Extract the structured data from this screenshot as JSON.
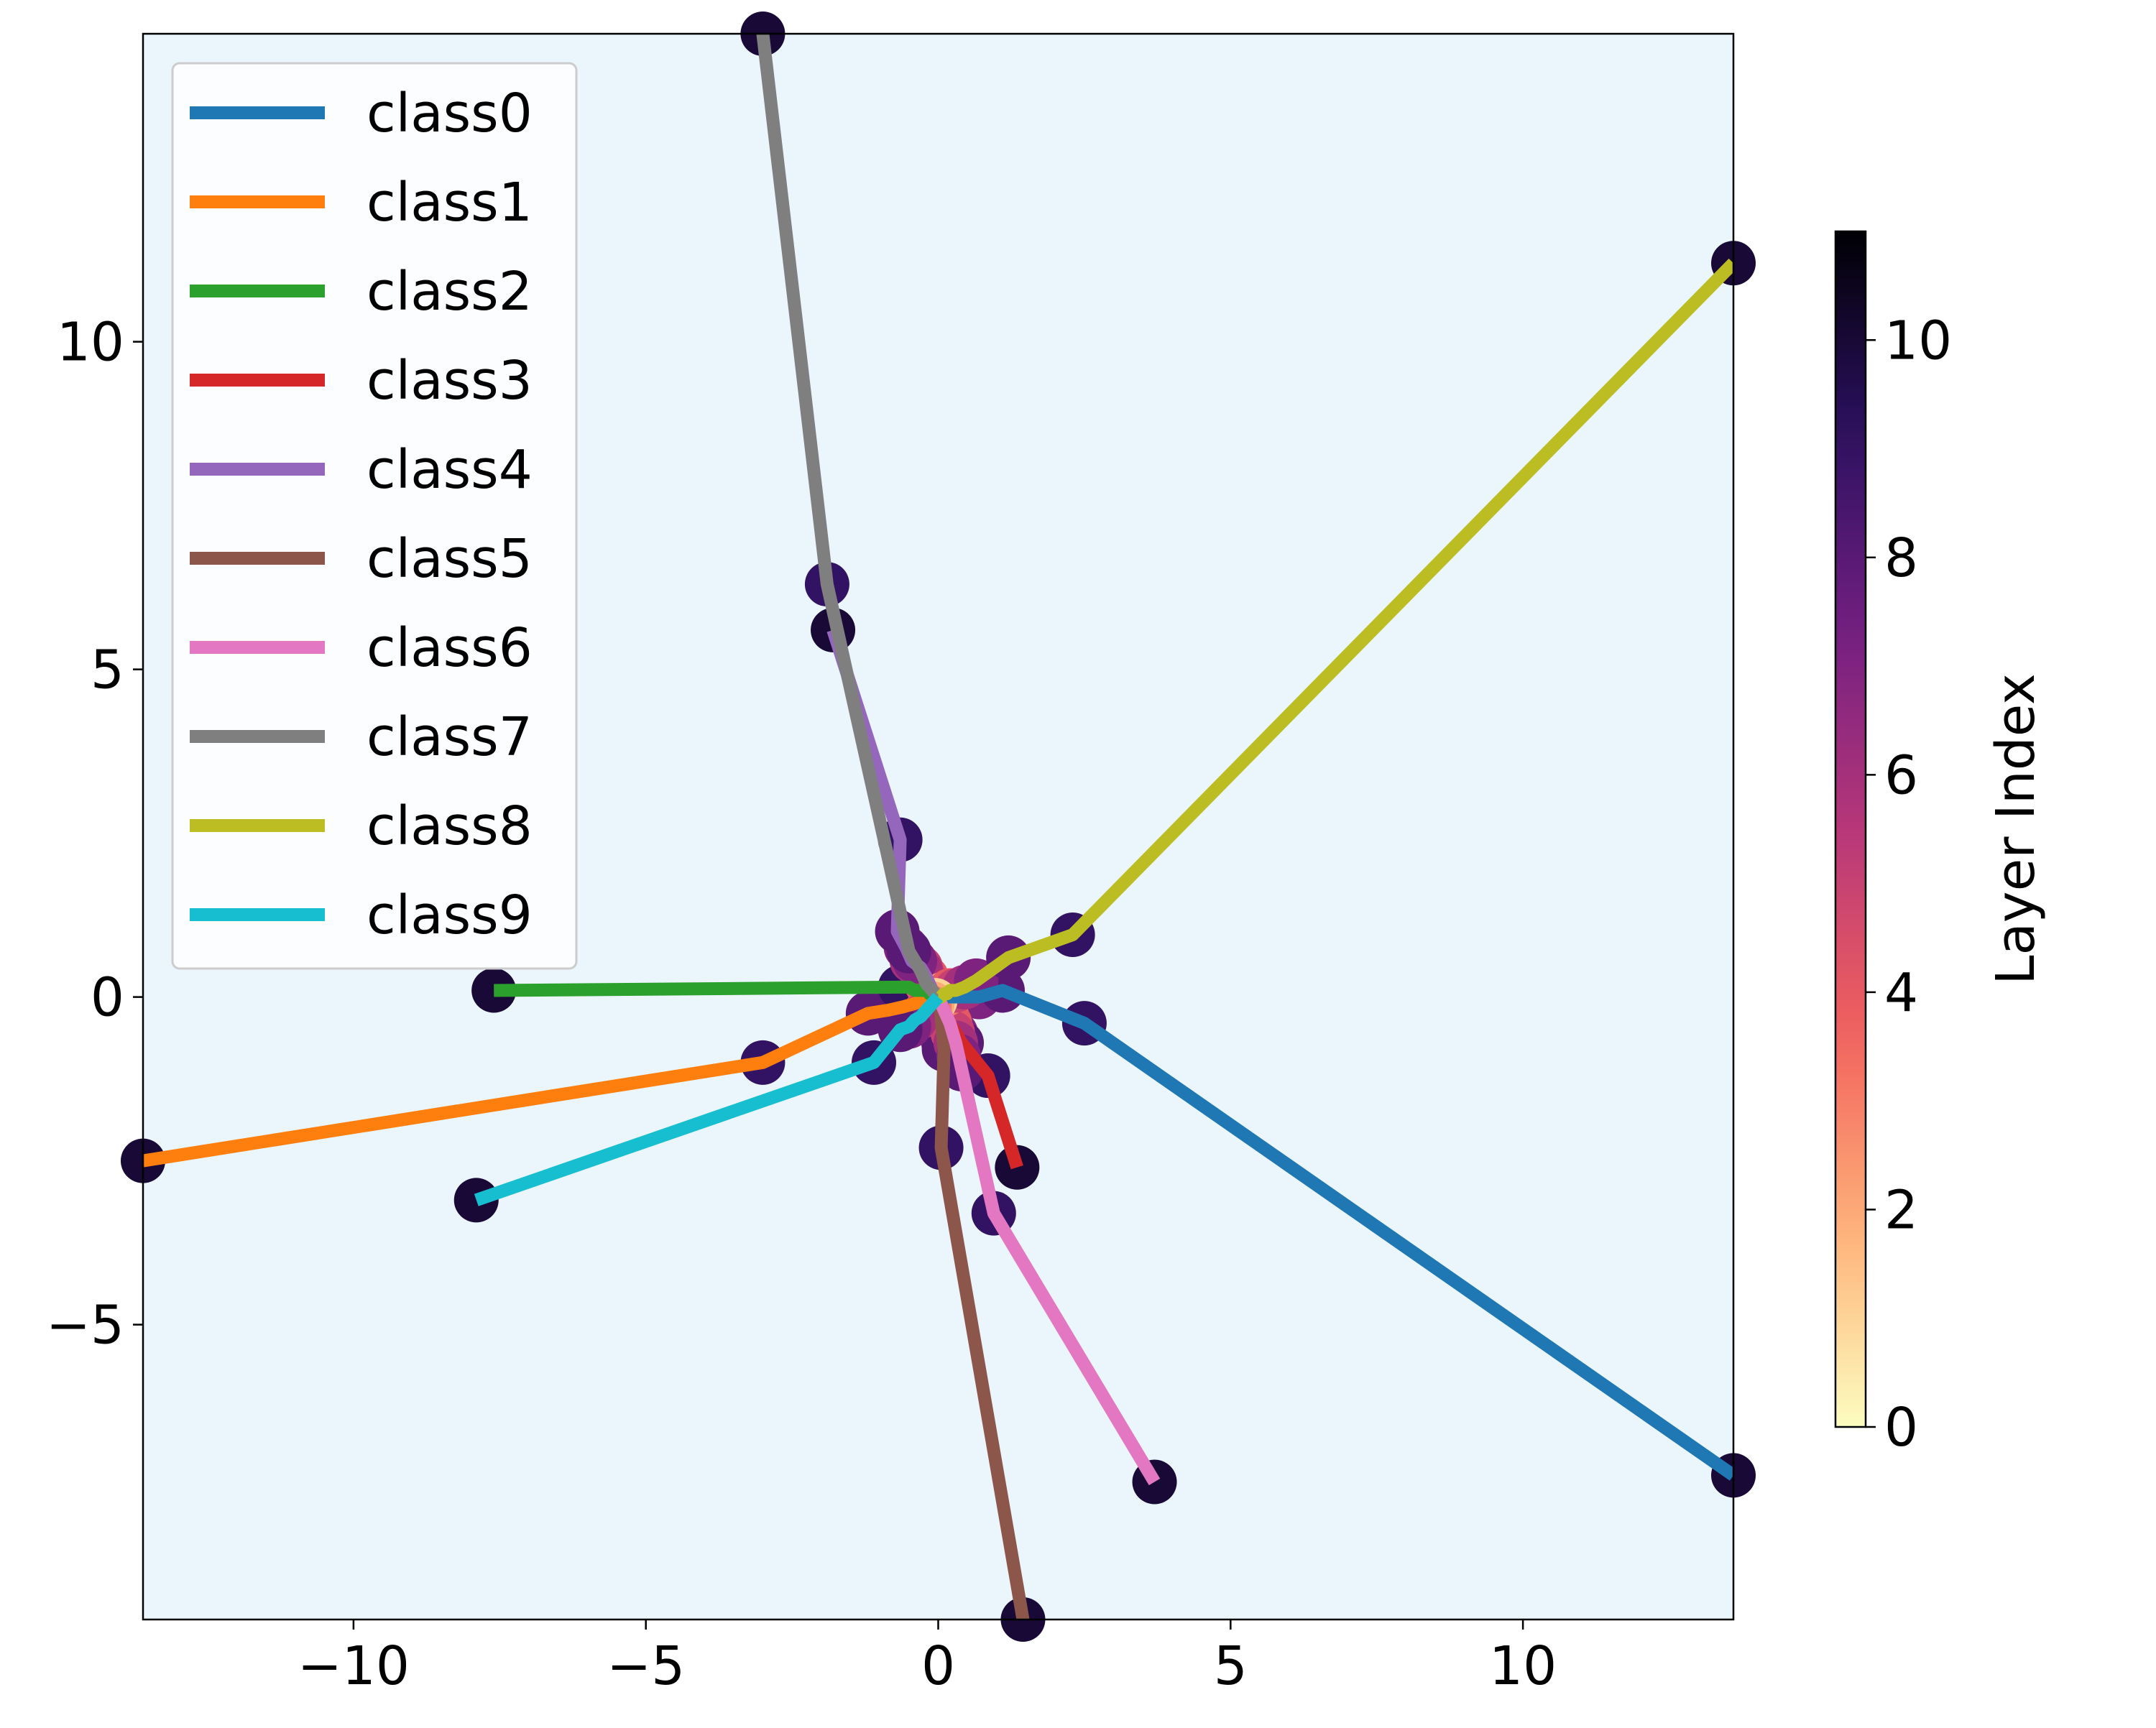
{
  "chart_data": {
    "type": "line",
    "title": "",
    "xlabel": "",
    "ylabel": "",
    "xlim": [
      -13.6,
      13.6
    ],
    "ylim": [
      -9.5,
      14.7
    ],
    "xticks": [
      -10,
      -5,
      0,
      5,
      10
    ],
    "yticks": [
      -5,
      0,
      5,
      10
    ],
    "xtick_labels": [
      "−10",
      "−5",
      "0",
      "5",
      "10"
    ],
    "ytick_labels": [
      "−5",
      "0",
      "5",
      "10"
    ],
    "background": "#eaf6fc",
    "legend_position": "upper-left",
    "series": [
      {
        "name": "class0",
        "color": "#1f77b4",
        "x": [
          0.0,
          0.05,
          0.1,
          0.15,
          0.2,
          0.3,
          0.45,
          0.7,
          1.1,
          2.5,
          13.6
        ],
        "y": [
          0.0,
          0.0,
          0.0,
          0.0,
          0.0,
          0.0,
          0.0,
          0.0,
          0.1,
          -0.4,
          -7.3
        ]
      },
      {
        "name": "class1",
        "color": "#ff7f0e",
        "x": [
          0.0,
          -0.05,
          -0.1,
          -0.15,
          -0.25,
          -0.4,
          -0.6,
          -0.85,
          -1.2,
          -3.0,
          -13.6
        ],
        "y": [
          0.0,
          0.0,
          0.0,
          0.0,
          -0.05,
          -0.1,
          -0.15,
          -0.2,
          -0.25,
          -1.0,
          -2.5
        ]
      },
      {
        "name": "class2",
        "color": "#2ca02c",
        "x": [
          0.0,
          -0.05,
          -0.1,
          -0.15,
          -0.2,
          -0.3,
          -0.4,
          -0.5,
          -0.6,
          -0.65,
          -7.6
        ],
        "y": [
          0.0,
          0.0,
          0.05,
          0.05,
          0.1,
          0.1,
          0.1,
          0.15,
          0.15,
          0.15,
          0.1
        ]
      },
      {
        "name": "class3",
        "color": "#d62728",
        "x": [
          0.0,
          0.02,
          0.05,
          0.08,
          0.1,
          0.15,
          0.2,
          0.3,
          0.4,
          0.85,
          1.35
        ],
        "y": [
          0.0,
          -0.05,
          -0.1,
          -0.15,
          -0.2,
          -0.3,
          -0.4,
          -0.55,
          -0.7,
          -1.2,
          -2.6
        ]
      },
      {
        "name": "class4",
        "color": "#9467bd",
        "x": [
          0.0,
          -0.05,
          -0.1,
          -0.15,
          -0.2,
          -0.3,
          -0.45,
          -0.55,
          -0.7,
          -0.65,
          -1.8
        ],
        "y": [
          0.0,
          0.05,
          0.1,
          0.2,
          0.3,
          0.45,
          0.55,
          0.75,
          1.0,
          2.4,
          5.6
        ]
      },
      {
        "name": "class5",
        "color": "#8c564b",
        "x": [
          0.0,
          0.02,
          0.04,
          0.05,
          0.06,
          0.07,
          0.08,
          0.09,
          0.1,
          0.05,
          1.45
        ],
        "y": [
          0.0,
          -0.1,
          -0.2,
          -0.3,
          -0.4,
          -0.5,
          -0.6,
          -0.7,
          -0.8,
          -2.3,
          -9.5
        ]
      },
      {
        "name": "class6",
        "color": "#e377c2",
        "x": [
          0.0,
          0.05,
          0.1,
          0.15,
          0.2,
          0.25,
          0.3,
          0.35,
          0.4,
          0.95,
          3.7
        ],
        "y": [
          0.0,
          -0.1,
          -0.2,
          -0.3,
          -0.4,
          -0.55,
          -0.7,
          -0.9,
          -1.1,
          -3.3,
          -7.4
        ]
      },
      {
        "name": "class7",
        "color": "#7f7f7f",
        "x": [
          0.0,
          -0.05,
          -0.1,
          -0.15,
          -0.2,
          -0.25,
          -0.3,
          -0.4,
          -0.5,
          -1.9,
          -3.0
        ],
        "y": [
          0.0,
          0.05,
          0.1,
          0.15,
          0.2,
          0.3,
          0.4,
          0.55,
          0.7,
          6.3,
          14.7
        ]
      },
      {
        "name": "class8",
        "color": "#bcbd22",
        "x": [
          0.0,
          0.05,
          0.1,
          0.15,
          0.2,
          0.3,
          0.45,
          0.65,
          1.2,
          2.3,
          13.6
        ],
        "y": [
          0.0,
          0.0,
          0.05,
          0.05,
          0.1,
          0.1,
          0.15,
          0.25,
          0.6,
          0.95,
          11.2
        ]
      },
      {
        "name": "class9",
        "color": "#17becf",
        "x": [
          0.0,
          -0.05,
          -0.1,
          -0.15,
          -0.2,
          -0.3,
          -0.4,
          -0.5,
          -0.65,
          -1.1,
          -7.9
        ],
        "y": [
          0.0,
          -0.05,
          -0.1,
          -0.15,
          -0.2,
          -0.3,
          -0.35,
          -0.45,
          -0.5,
          -1.0,
          -3.1
        ]
      }
    ],
    "colorbar": {
      "label": "Layer Index",
      "min": 0,
      "max": 11,
      "ticks": [
        0,
        2,
        4,
        6,
        8,
        10
      ],
      "tick_labels": [
        "0",
        "2",
        "4",
        "6",
        "8",
        "10"
      ],
      "stops": [
        "#fcfdbf",
        "#feb078",
        "#f1605d",
        "#b73779",
        "#721f81",
        "#2c115f",
        "#000004"
      ]
    }
  }
}
